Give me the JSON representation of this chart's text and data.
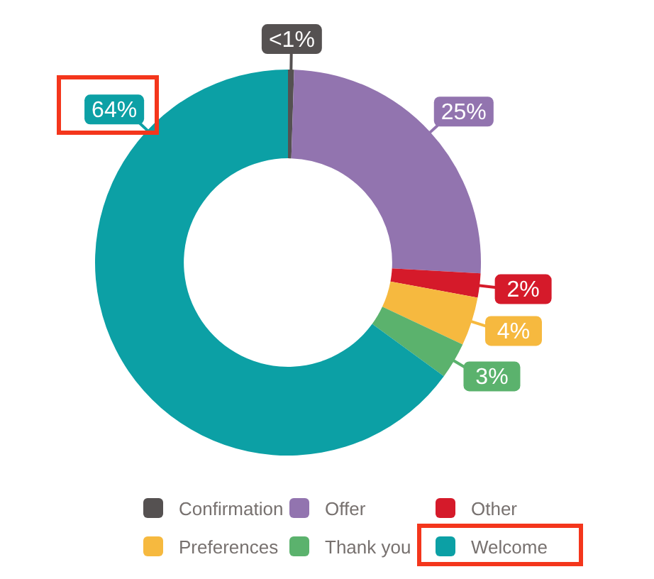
{
  "chart_data": {
    "type": "donut",
    "categories": [
      "Confirmation",
      "Offer",
      "Other",
      "Preferences",
      "Thank you",
      "Welcome"
    ],
    "values": [
      0.5,
      25,
      2,
      4,
      3,
      64
    ],
    "colors": [
      "#555151",
      "#9274af",
      "#d51a2a",
      "#f6b93f",
      "#5bb26d",
      "#0ca0a5"
    ],
    "value_labels": [
      "<1%",
      "25%",
      "2%",
      "4%",
      "3%",
      "64%"
    ],
    "legend": "bottom"
  }
}
